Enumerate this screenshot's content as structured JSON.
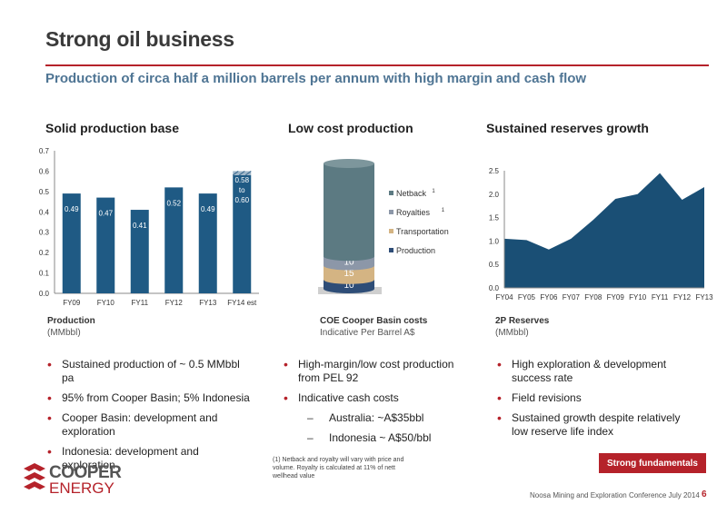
{
  "header": {
    "title": "Strong oil business",
    "subtitle": "Production of circa half a million barrels per annum with high margin and cash flow"
  },
  "sections": {
    "left": {
      "heading": "Solid production base",
      "caption_title": "Production",
      "caption_sub": "(MMbbl)"
    },
    "middle": {
      "heading": "Low cost production",
      "caption_title": "COE Cooper Basin costs",
      "caption_sub": "Indicative Per Barrel A$"
    },
    "right": {
      "heading": "Sustained reserves growth",
      "caption_title": "2P Reserves",
      "caption_sub": "(MMbbl)"
    }
  },
  "bullets": {
    "left": [
      "Sustained production of ~ 0.5 MMbbl pa",
      "95% from Cooper Basin; 5% Indonesia",
      "Cooper Basin: development and exploration",
      "Indonesia: development and exploration"
    ],
    "middle": [
      "High-margin/low cost production from PEL 92",
      "Indicative cash costs"
    ],
    "middle_dash": [
      "Australia: ~A$35bbl",
      "Indonesia ~ A$50/bbl"
    ],
    "right": [
      "High exploration & development success rate",
      "Field revisions",
      "Sustained growth despite relatively low reserve life index"
    ]
  },
  "footnote": "(1) Netback and royalty will vary with price and volume.  Royalty is calculated at 11% of nett wellhead value",
  "badge": "Strong fundamentals",
  "logo": {
    "line1": "COOPER",
    "line2": "ENERGY"
  },
  "footer": {
    "event": "Noosa Mining and Exploration Conference July 2014",
    "page": "6"
  },
  "colors": {
    "accent": "#b5222a",
    "bar": "#1f5a84",
    "area": "#1a4f75",
    "subtitle": "#4f7594"
  },
  "chart_data": [
    {
      "type": "bar",
      "categories": [
        "FY09",
        "FY10",
        "FY11",
        "FY12",
        "FY13",
        "FY14 est"
      ],
      "values": [
        0.49,
        0.47,
        0.41,
        0.52,
        0.49,
        0.58
      ],
      "value_labels": [
        "0.49",
        "0.47",
        "0.41",
        "0.52",
        "0.49",
        "0.58\nto\n0.60"
      ],
      "range_top": 0.6,
      "ylim": [
        0,
        0.7
      ],
      "yticks": [
        "0.0",
        "0.1",
        "0.2",
        "0.3",
        "0.4",
        "0.5",
        "0.6",
        "0.7"
      ],
      "grid": false
    },
    {
      "type": "bar",
      "stacked": true,
      "series": [
        {
          "name": "Production",
          "value": 10,
          "label": "10",
          "color": "#2e4d77"
        },
        {
          "name": "Transportation",
          "value": 15,
          "label": "15",
          "color": "#d4b483"
        },
        {
          "name": "Royalties",
          "value": 10,
          "label": "10",
          "color": "#8c97a8"
        },
        {
          "name": "Netback",
          "value": 100,
          "label": "",
          "color": "#5c7a82"
        }
      ],
      "legend": [
        "Netback 1",
        "Royalties1",
        "Transportation",
        "Production"
      ],
      "legend_entries": [
        {
          "text": "Netback",
          "sup": "1",
          "color": "#5c7a82"
        },
        {
          "text": "Royalties",
          "sup": "1",
          "color": "#8c97a8"
        },
        {
          "text": "Transportation",
          "sup": "",
          "color": "#d4b483"
        },
        {
          "text": "Production",
          "sup": "",
          "color": "#2e4d77"
        }
      ],
      "legend_position": "right"
    },
    {
      "type": "area",
      "x": [
        "FY04",
        "FY05",
        "FY06",
        "FY07",
        "FY08",
        "FY09",
        "FY10",
        "FY11",
        "FY12",
        "FY13"
      ],
      "values": [
        1.05,
        1.02,
        0.82,
        1.05,
        1.45,
        1.9,
        2.0,
        2.45,
        1.88,
        2.15
      ],
      "ylim": [
        0,
        2.5
      ],
      "yticks": [
        "0.0",
        "0.5",
        "1.0",
        "1.5",
        "2.0",
        "2.5"
      ],
      "grid": false
    }
  ]
}
